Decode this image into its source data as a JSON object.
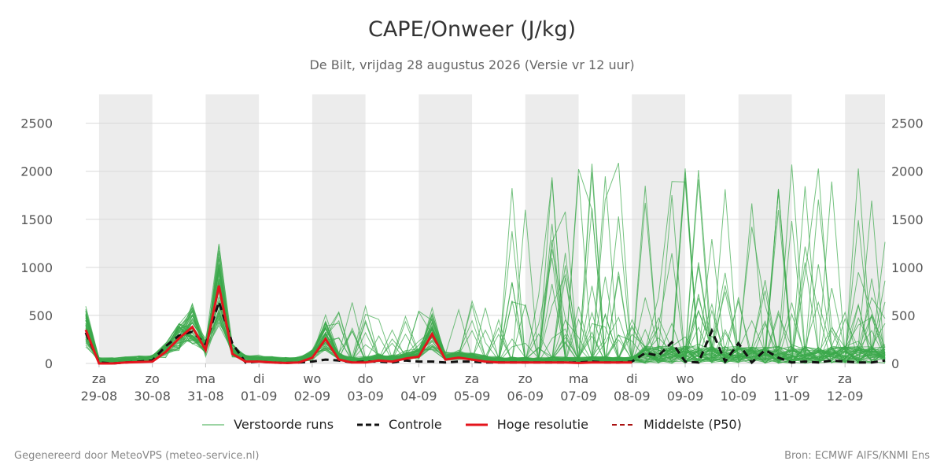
{
  "title": "CAPE/Onweer (J/kg)",
  "subtitle": "De Bilt, vrijdag 28 augustus 2026 (Versie vr 12 uur)",
  "footer": {
    "left": "Gegenereerd door MeteoVPS (meteo-service.nl)",
    "right": "Bron: ECMWF AIFS/KNMI Ens"
  },
  "legend": [
    {
      "label": "Verstoorde runs",
      "color": "#3aa84a",
      "style": "thin"
    },
    {
      "label": "Controle",
      "color": "#111111",
      "style": "dashed"
    },
    {
      "label": "Hoge resolutie",
      "color": "#e4141c",
      "style": "solid"
    },
    {
      "label": "Middelste (P50)",
      "color": "#aa1111",
      "style": "dashed-thin"
    }
  ],
  "chart_data": {
    "type": "line",
    "title": "CAPE/Onweer (J/kg)",
    "ylim": [
      0,
      2800
    ],
    "yticks": [
      0,
      500,
      1000,
      1500,
      2000,
      2500
    ],
    "grid": true,
    "legend_position": "bottom",
    "x_range": [
      -0.25,
      14.75
    ],
    "x_unit": "days since 29-08 00 UTC",
    "x_ticks": [
      {
        "day": "za",
        "date": "29-08"
      },
      {
        "day": "zo",
        "date": "30-08"
      },
      {
        "day": "ma",
        "date": "31-08"
      },
      {
        "day": "di",
        "date": "01-09"
      },
      {
        "day": "wo",
        "date": "02-09"
      },
      {
        "day": "do",
        "date": "03-09"
      },
      {
        "day": "vr",
        "date": "04-09"
      },
      {
        "day": "za",
        "date": "05-09"
      },
      {
        "day": "zo",
        "date": "06-09"
      },
      {
        "day": "ma",
        "date": "07-09"
      },
      {
        "day": "di",
        "date": "08-09"
      },
      {
        "day": "wo",
        "date": "09-09"
      },
      {
        "day": "do",
        "date": "10-09"
      },
      {
        "day": "vr",
        "date": "11-09"
      },
      {
        "day": "za",
        "date": "12-09"
      }
    ],
    "night_bands": [
      [
        0,
        1
      ],
      [
        2,
        3
      ],
      [
        4,
        5
      ],
      [
        6,
        7
      ],
      [
        8,
        9
      ],
      [
        10,
        11
      ],
      [
        12,
        13
      ],
      [
        14,
        14.75
      ]
    ],
    "hires_x": [
      -0.25,
      0.0,
      0.25,
      0.5,
      0.75,
      1.0,
      1.25,
      1.5,
      1.75,
      2.0,
      2.25,
      2.5,
      2.75,
      3.0,
      3.25,
      3.5,
      3.75,
      4.0,
      4.25,
      4.5,
      4.75,
      5.0,
      5.25,
      5.5,
      5.75,
      6.0,
      6.25,
      6.5,
      6.75,
      7.0,
      7.25,
      7.5,
      7.75,
      8.0,
      8.25,
      8.5,
      8.75,
      9.0,
      9.25,
      9.5,
      9.75,
      10.0
    ],
    "series": [
      {
        "name": "Hoge resolutie",
        "color": "#e4141c",
        "values": [
          350,
          0,
          0,
          10,
          15,
          20,
          120,
          260,
          380,
          140,
          810,
          100,
          20,
          20,
          10,
          5,
          10,
          60,
          255,
          40,
          10,
          10,
          30,
          20,
          50,
          70,
          305,
          40,
          60,
          40,
          20,
          10,
          10,
          10,
          10,
          10,
          10,
          5,
          10,
          10,
          10,
          10
        ]
      },
      {
        "name": "Controle",
        "color": "#111111",
        "x": [
          -0.25,
          0.0,
          0.25,
          0.5,
          0.75,
          1.0,
          1.25,
          1.5,
          1.75,
          2.0,
          2.25,
          2.5,
          2.75,
          3.0,
          3.25,
          3.5,
          3.75,
          4.0,
          4.25,
          4.5,
          4.75,
          5.0,
          5.25,
          5.5,
          5.75,
          6.0,
          6.25,
          6.5,
          6.75,
          7.0,
          7.25,
          7.5,
          7.75,
          8.0,
          8.25,
          8.5,
          8.75,
          9.0,
          9.25,
          9.5,
          9.75,
          10.0,
          10.25,
          10.5,
          10.75,
          11.0,
          11.25,
          11.5,
          11.75,
          12.0,
          12.25,
          12.5,
          12.75,
          13.0,
          13.25,
          13.5,
          13.75,
          14.0,
          14.25,
          14.5,
          14.75
        ],
        "values": [
          320,
          10,
          0,
          10,
          20,
          30,
          180,
          290,
          330,
          200,
          640,
          210,
          10,
          20,
          10,
          5,
          10,
          20,
          40,
          30,
          10,
          20,
          20,
          10,
          30,
          20,
          20,
          10,
          20,
          20,
          10,
          10,
          10,
          10,
          10,
          10,
          10,
          10,
          20,
          10,
          10,
          20,
          110,
          80,
          220,
          20,
          10,
          340,
          20,
          210,
          10,
          140,
          60,
          10,
          20,
          10,
          30,
          20,
          10,
          10,
          30
        ]
      }
    ]
  }
}
